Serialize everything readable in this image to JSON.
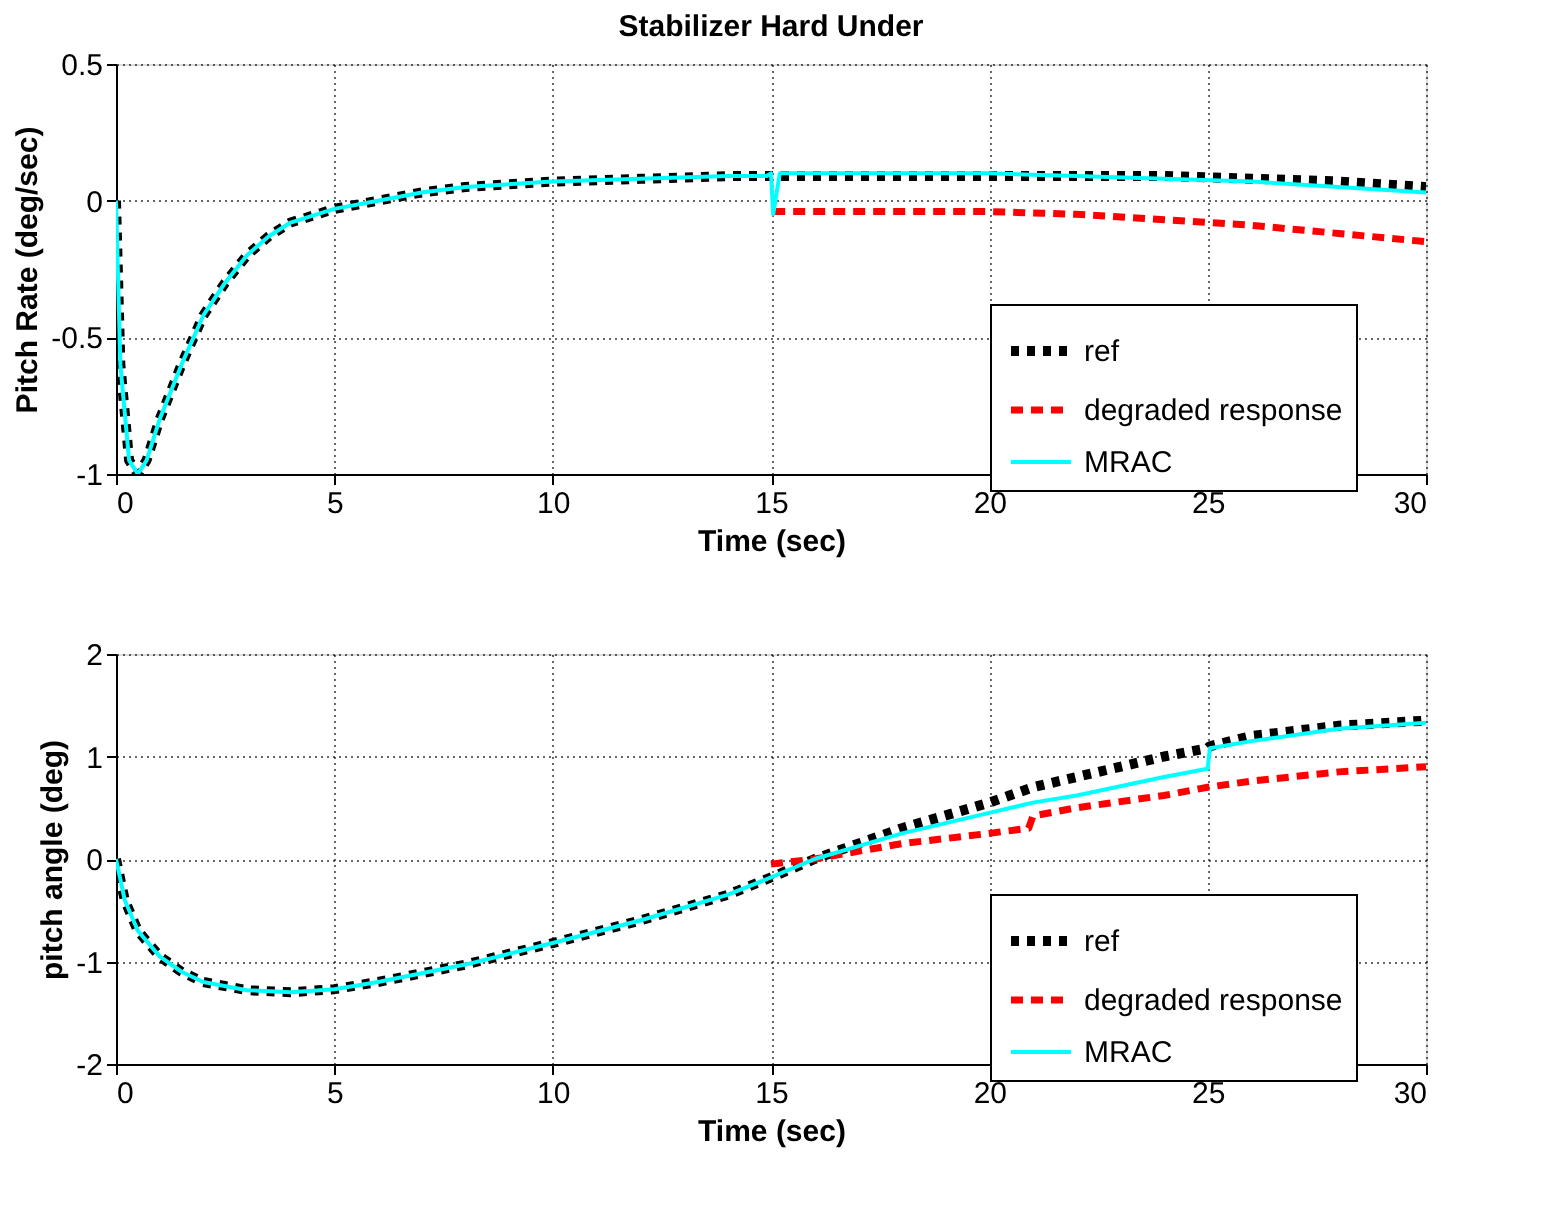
{
  "chart_data": [
    {
      "type": "line",
      "title": "Stabilizer Hard Under",
      "xlabel": "Time (sec)",
      "ylabel": "Pitch Rate (deg/sec)",
      "xlim": [
        0,
        30
      ],
      "xticks": [
        0,
        5,
        10,
        15,
        20,
        25,
        30
      ],
      "ylim": [
        -1,
        0.5
      ],
      "yticks": [
        -1,
        -0.5,
        0,
        0.5
      ],
      "grid": true,
      "legend": "bottom right",
      "marker": "none",
      "series": [
        {
          "name": "ref",
          "color": "#000000",
          "line_style": "dotted",
          "x": [
            0,
            0.1,
            0.3,
            0.5,
            0.7,
            1,
            1.5,
            2,
            2.5,
            3,
            3.5,
            4,
            5,
            6,
            7,
            8,
            10,
            12,
            14,
            14.9,
            15,
            15.05,
            15.2,
            16,
            18,
            20,
            22,
            24,
            26,
            28,
            30
          ],
          "values": [
            0,
            -0.6,
            -0.95,
            -1.0,
            -0.95,
            -0.8,
            -0.6,
            -0.42,
            -0.3,
            -0.2,
            -0.13,
            -0.08,
            -0.03,
            0.0,
            0.03,
            0.05,
            0.07,
            0.08,
            0.09,
            0.09,
            0.09,
            0.09,
            0.09,
            0.09,
            0.09,
            0.09,
            0.09,
            0.09,
            0.08,
            0.07,
            0.05
          ]
        },
        {
          "name": "degraded response",
          "color": "#ff0000",
          "line_style": "dashed",
          "x": [
            15.05,
            15.2,
            16,
            18,
            20,
            22,
            24,
            26,
            28,
            30
          ],
          "values": [
            -0.04,
            -0.04,
            -0.04,
            -0.04,
            -0.04,
            -0.05,
            -0.07,
            -0.09,
            -0.12,
            -0.15
          ]
        },
        {
          "name": "MRAC",
          "color": "#00ffff",
          "line_style": "solid",
          "x": [
            0,
            0.1,
            0.3,
            0.5,
            0.7,
            1,
            1.5,
            2,
            2.5,
            3,
            3.5,
            4,
            5,
            6,
            7,
            8,
            10,
            12,
            14,
            14.9,
            15,
            15.05,
            15.2,
            16,
            18,
            20,
            22,
            24,
            26,
            28,
            30
          ],
          "values": [
            0,
            -0.6,
            -0.95,
            -1.0,
            -0.95,
            -0.8,
            -0.6,
            -0.42,
            -0.3,
            -0.2,
            -0.13,
            -0.08,
            -0.03,
            0.0,
            0.03,
            0.05,
            0.07,
            0.08,
            0.09,
            0.09,
            0.1,
            -0.05,
            0.1,
            0.1,
            0.1,
            0.1,
            0.09,
            0.08,
            0.07,
            0.05,
            0.03
          ]
        }
      ]
    },
    {
      "type": "line",
      "xlabel": "Time (sec)",
      "ylabel": "pitch angle (deg)",
      "xlim": [
        0,
        30
      ],
      "xticks": [
        0,
        5,
        10,
        15,
        20,
        25,
        30
      ],
      "ylim": [
        -2,
        2
      ],
      "yticks": [
        -2,
        -1,
        0,
        1,
        2
      ],
      "grid": true,
      "legend": "bottom right",
      "marker": "none",
      "series": [
        {
          "name": "ref",
          "color": "#000000",
          "line_style": "dotted",
          "x": [
            0,
            0.2,
            0.5,
            1,
            1.5,
            2,
            3,
            4,
            5,
            6,
            8,
            10,
            12,
            14,
            15,
            16,
            18,
            20,
            21,
            22,
            24,
            25,
            25.05,
            26,
            28,
            30
          ],
          "values": [
            0,
            -0.4,
            -0.7,
            -0.95,
            -1.1,
            -1.2,
            -1.28,
            -1.3,
            -1.27,
            -1.2,
            -1.03,
            -0.82,
            -0.6,
            -0.35,
            -0.18,
            0.0,
            0.3,
            0.55,
            0.7,
            0.8,
            1.0,
            1.08,
            1.1,
            1.2,
            1.3,
            1.35
          ]
        },
        {
          "name": "degraded response",
          "color": "#ff0000",
          "line_style": "dashed",
          "x": [
            15,
            16,
            18,
            20,
            20.9,
            21,
            22,
            24,
            25,
            26,
            28,
            30
          ],
          "values": [
            -0.05,
            0.0,
            0.15,
            0.25,
            0.3,
            0.42,
            0.5,
            0.62,
            0.7,
            0.76,
            0.85,
            0.9
          ]
        },
        {
          "name": "MRAC",
          "color": "#00ffff",
          "line_style": "solid",
          "x": [
            0,
            0.2,
            0.5,
            1,
            1.5,
            2,
            3,
            4,
            5,
            6,
            8,
            10,
            12,
            14,
            15,
            16,
            18,
            20,
            21,
            22,
            24,
            25,
            25.05,
            26,
            28,
            30
          ],
          "values": [
            0,
            -0.4,
            -0.7,
            -0.95,
            -1.1,
            -1.2,
            -1.28,
            -1.3,
            -1.27,
            -1.2,
            -1.03,
            -0.82,
            -0.6,
            -0.35,
            -0.18,
            0.0,
            0.25,
            0.45,
            0.55,
            0.62,
            0.8,
            0.88,
            1.08,
            1.15,
            1.27,
            1.33
          ]
        }
      ]
    }
  ]
}
